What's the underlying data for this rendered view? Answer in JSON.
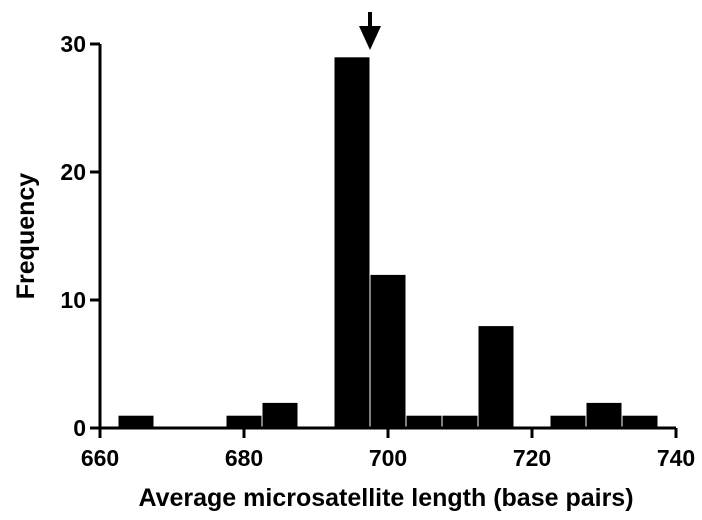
{
  "chart_data": {
    "type": "bar",
    "xlabel": "Average microsatellite length (base pairs)",
    "ylabel": "Frequency",
    "xlim": [
      660,
      740
    ],
    "ylim": [
      0,
      30
    ],
    "x_ticks": [
      660,
      680,
      700,
      720,
      740
    ],
    "y_ticks": [
      0,
      10,
      20,
      30
    ],
    "x_tick_labels": [
      "660",
      "680",
      "700",
      "720",
      "740"
    ],
    "y_tick_labels": [
      "0",
      "10",
      "20",
      "30"
    ],
    "bin_width": 5,
    "bins": [
      {
        "start": 662.5,
        "end": 667.5,
        "count": 1
      },
      {
        "start": 667.5,
        "end": 672.5,
        "count": 0
      },
      {
        "start": 672.5,
        "end": 677.5,
        "count": 0
      },
      {
        "start": 677.5,
        "end": 682.5,
        "count": 1
      },
      {
        "start": 682.5,
        "end": 687.5,
        "count": 2
      },
      {
        "start": 687.5,
        "end": 692.5,
        "count": 0
      },
      {
        "start": 692.5,
        "end": 697.5,
        "count": 29
      },
      {
        "start": 697.5,
        "end": 702.5,
        "count": 12
      },
      {
        "start": 702.5,
        "end": 707.5,
        "count": 1
      },
      {
        "start": 707.5,
        "end": 712.5,
        "count": 1
      },
      {
        "start": 712.5,
        "end": 717.5,
        "count": 8
      },
      {
        "start": 717.5,
        "end": 722.5,
        "count": 0
      },
      {
        "start": 722.5,
        "end": 727.5,
        "count": 1
      },
      {
        "start": 727.5,
        "end": 732.5,
        "count": 2
      },
      {
        "start": 732.5,
        "end": 737.5,
        "count": 1
      }
    ],
    "annotations": [
      {
        "type": "arrow",
        "x": 697.5,
        "pointing": "down"
      }
    ],
    "grid": false,
    "legend": "none",
    "bar_color": "#000000"
  }
}
